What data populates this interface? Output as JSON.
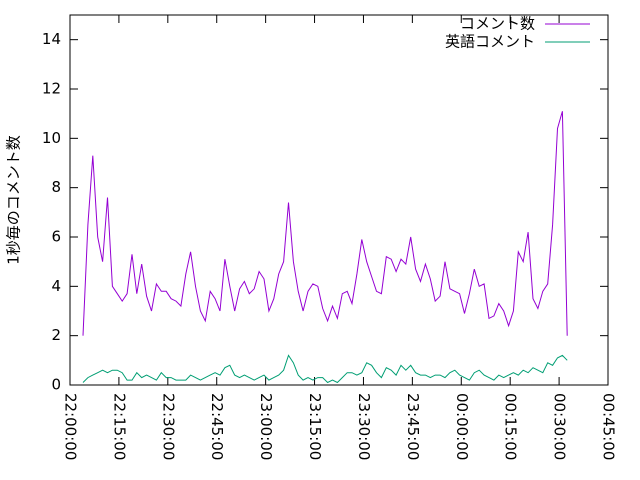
{
  "chart_data": {
    "type": "line",
    "ylabel": "1秒毎のコメント数",
    "x": [
      "22:04:00",
      "22:05:30",
      "22:07:00",
      "22:08:30",
      "22:10:00",
      "22:11:30",
      "22:13:00",
      "22:14:30",
      "22:16:00",
      "22:17:30",
      "22:19:00",
      "22:20:30",
      "22:22:00",
      "22:23:30",
      "22:25:00",
      "22:26:30",
      "22:28:00",
      "22:29:30",
      "22:31:00",
      "22:32:30",
      "22:34:00",
      "22:35:30",
      "22:37:00",
      "22:38:30",
      "22:40:00",
      "22:41:30",
      "22:43:00",
      "22:44:30",
      "22:46:00",
      "22:47:30",
      "22:49:00",
      "22:50:30",
      "22:52:00",
      "22:53:30",
      "22:55:00",
      "22:56:30",
      "22:58:00",
      "22:59:30",
      "23:01:00",
      "23:02:30",
      "23:04:00",
      "23:05:30",
      "23:07:00",
      "23:08:30",
      "23:10:00",
      "23:11:30",
      "23:13:00",
      "23:14:30",
      "23:16:00",
      "23:17:30",
      "23:19:00",
      "23:20:30",
      "23:22:00",
      "23:23:30",
      "23:25:00",
      "23:26:30",
      "23:28:00",
      "23:29:30",
      "23:31:00",
      "23:32:30",
      "23:34:00",
      "23:35:30",
      "23:37:00",
      "23:38:30",
      "23:40:00",
      "23:41:30",
      "23:43:00",
      "23:44:30",
      "23:46:00",
      "23:47:30",
      "23:49:00",
      "23:50:30",
      "23:52:00",
      "23:53:30",
      "23:55:00",
      "23:56:30",
      "23:58:00",
      "23:59:30",
      "00:01:00",
      "00:02:30",
      "00:04:00",
      "00:05:30",
      "00:07:00",
      "00:08:30",
      "00:10:00",
      "00:11:30",
      "00:13:00",
      "00:14:30",
      "00:16:00",
      "00:17:30",
      "00:19:00",
      "00:20:30",
      "00:22:00",
      "00:23:30",
      "00:25:00",
      "00:26:30",
      "00:28:00",
      "00:29:30",
      "00:31:00",
      "00:32:30"
    ],
    "series": [
      {
        "name": "コメント数",
        "color": "#9400d3",
        "values": [
          2.0,
          6.5,
          9.3,
          6.0,
          5.0,
          7.6,
          4.0,
          3.7,
          3.4,
          3.7,
          5.3,
          3.7,
          4.9,
          3.6,
          3.0,
          4.1,
          3.8,
          3.8,
          3.5,
          3.4,
          3.2,
          4.5,
          5.4,
          4.0,
          3.0,
          2.6,
          3.8,
          3.5,
          3.0,
          5.1,
          4.0,
          3.0,
          3.9,
          4.2,
          3.7,
          3.9,
          4.6,
          4.3,
          3.0,
          3.5,
          4.5,
          5.0,
          7.4,
          5.0,
          3.8,
          3.0,
          3.8,
          4.1,
          4.0,
          3.1,
          2.6,
          3.2,
          2.7,
          3.7,
          3.8,
          3.3,
          4.5,
          5.9,
          5.0,
          4.4,
          3.8,
          3.7,
          5.2,
          5.1,
          4.6,
          5.1,
          4.9,
          6.0,
          4.7,
          4.2,
          4.9,
          4.3,
          3.4,
          3.6,
          5.0,
          3.9,
          3.8,
          3.7,
          2.9,
          3.7,
          4.7,
          4.0,
          4.1,
          2.7,
          2.8,
          3.3,
          3.0,
          2.4,
          3.0,
          5.4,
          5.0,
          6.2,
          3.5,
          3.1,
          3.8,
          4.1,
          6.5,
          10.4,
          11.1,
          2.0
        ]
      },
      {
        "name": "英語コメント",
        "color": "#009e73",
        "values": [
          0.1,
          0.3,
          0.4,
          0.5,
          0.6,
          0.5,
          0.6,
          0.6,
          0.5,
          0.2,
          0.2,
          0.5,
          0.3,
          0.4,
          0.3,
          0.2,
          0.5,
          0.3,
          0.3,
          0.2,
          0.2,
          0.2,
          0.4,
          0.3,
          0.2,
          0.3,
          0.4,
          0.5,
          0.4,
          0.7,
          0.8,
          0.4,
          0.3,
          0.4,
          0.3,
          0.2,
          0.3,
          0.4,
          0.2,
          0.3,
          0.4,
          0.6,
          1.2,
          0.9,
          0.4,
          0.2,
          0.3,
          0.2,
          0.3,
          0.3,
          0.1,
          0.2,
          0.1,
          0.3,
          0.5,
          0.5,
          0.4,
          0.5,
          0.9,
          0.8,
          0.5,
          0.3,
          0.7,
          0.6,
          0.4,
          0.8,
          0.6,
          0.8,
          0.5,
          0.4,
          0.4,
          0.3,
          0.4,
          0.4,
          0.3,
          0.5,
          0.6,
          0.4,
          0.3,
          0.2,
          0.5,
          0.6,
          0.4,
          0.3,
          0.2,
          0.4,
          0.3,
          0.4,
          0.5,
          0.4,
          0.6,
          0.5,
          0.7,
          0.6,
          0.5,
          0.9,
          0.8,
          1.1,
          1.2,
          1.0
        ]
      }
    ],
    "xlim": [
      "22:00:00",
      "00:45:00"
    ],
    "xticks": [
      "22:00:00",
      "22:15:00",
      "22:30:00",
      "22:45:00",
      "23:00:00",
      "23:15:00",
      "23:30:00",
      "23:45:00",
      "00:00:00",
      "00:15:00",
      "00:30:00",
      "00:45:00"
    ],
    "ylim": [
      0,
      15
    ],
    "yticks": [
      0,
      2,
      4,
      6,
      8,
      10,
      12,
      14
    ],
    "legend": "top-right"
  }
}
